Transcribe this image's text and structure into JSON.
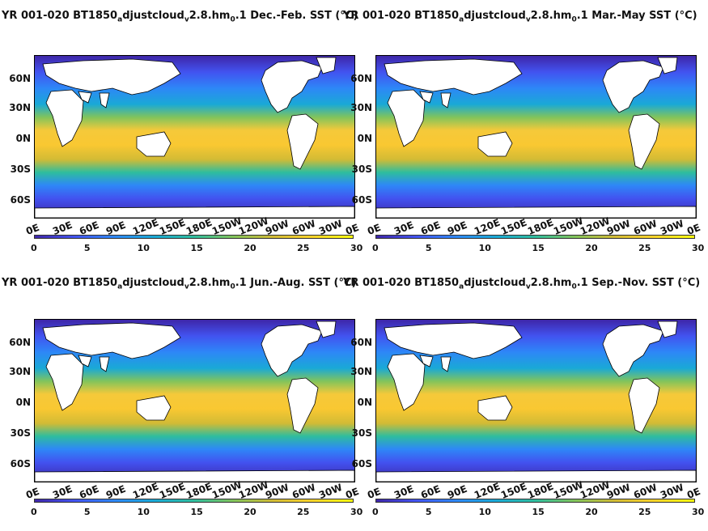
{
  "panels": [
    {
      "title_pre": "YR 001-020 BT1850",
      "sub1": "a",
      "title_mid": "djustcloud",
      "sub2": "v",
      "title_mid2": "2.8.hm",
      "sub3": "0",
      "title_post": ".1 Dec.-Feb. SST (°C)"
    },
    {
      "title_pre": "YR 001-020 BT1850",
      "sub1": "a",
      "title_mid": "djustcloud",
      "sub2": "v",
      "title_mid2": "2.8.hm",
      "sub3": "0",
      "title_post": ".1 Mar.-May SST (°C)"
    },
    {
      "title_pre": "YR 001-020 BT1850",
      "sub1": "a",
      "title_mid": "djustcloud",
      "sub2": "v",
      "title_mid2": "2.8.hm",
      "sub3": "0",
      "title_post": ".1 Jun.-Aug. SST (°C)"
    },
    {
      "title_pre": "YR 001-020 BT1850",
      "sub1": "a",
      "title_mid": "djustcloud",
      "sub2": "v",
      "title_mid2": "2.8.hm",
      "sub3": "0",
      "title_post": ".1 Sep.-Nov. SST (°C)"
    }
  ],
  "lat_labels": [
    "60N",
    "30N",
    "0N",
    "30S",
    "60S"
  ],
  "lon_labels": [
    "0E",
    "30E",
    "60E",
    "90E",
    "120E",
    "150E",
    "180E",
    "150W",
    "120W",
    "90W",
    "60W",
    "30W",
    "0E"
  ],
  "colorbar_ticks": [
    "0",
    "5",
    "10",
    "15",
    "20",
    "25",
    "30"
  ],
  "colors": {
    "cold": "#3e26a8",
    "mid": "#2ebd9e",
    "warm": "#f9c832",
    "land": "#ffffff"
  }
}
